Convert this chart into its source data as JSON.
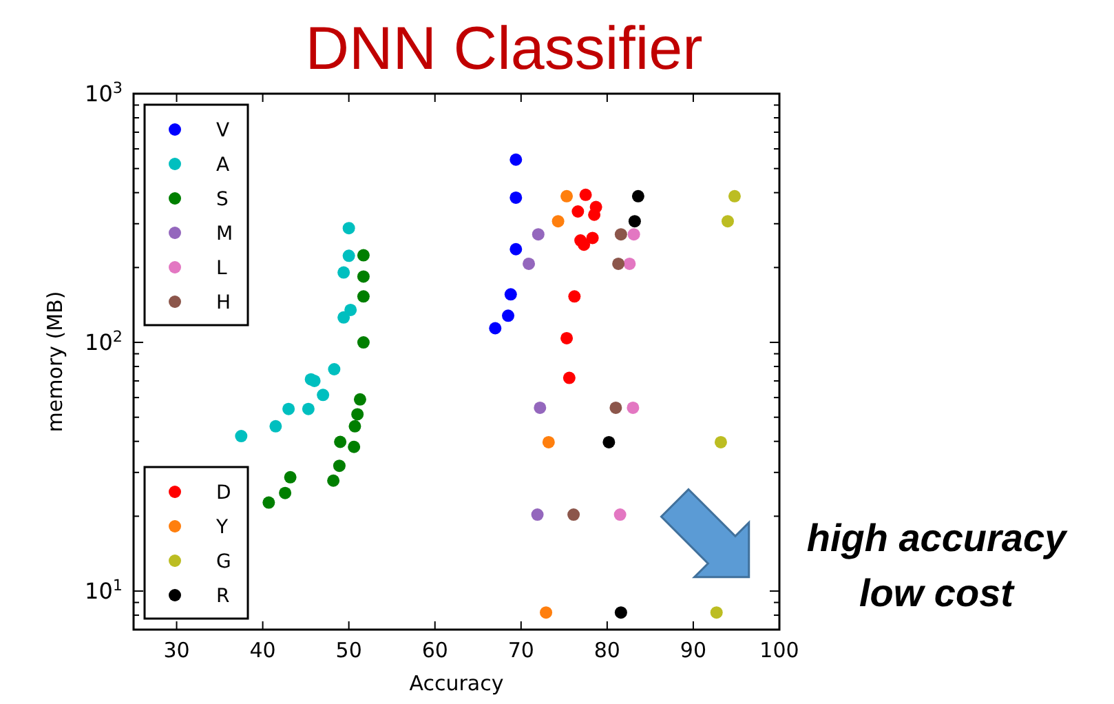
{
  "chart_data": {
    "type": "scatter",
    "title": "DNN Classifier",
    "xlabel": "Accuracy",
    "ylabel": "memory (MB)",
    "log": "y",
    "xlim": [
      25,
      100
    ],
    "xticks": [
      30,
      40,
      50,
      60,
      70,
      80,
      90,
      100
    ],
    "ylim": [
      7,
      1000
    ],
    "yticks": [
      {
        "value": 8,
        "label": null
      },
      {
        "value": 9,
        "label": null
      },
      {
        "value": 10,
        "label": "10$^{1}$"
      },
      {
        "value": 20,
        "label": null
      },
      {
        "value": 30,
        "label": null
      },
      {
        "value": 40,
        "label": null
      },
      {
        "value": 50,
        "label": null
      },
      {
        "value": 60,
        "label": null
      },
      {
        "value": 70,
        "label": null
      },
      {
        "value": 80,
        "label": null
      },
      {
        "value": 90,
        "label": null
      },
      {
        "value": 100,
        "label": "10$^{2}$"
      },
      {
        "value": 200,
        "label": null
      },
      {
        "value": 300,
        "label": null
      },
      {
        "value": 400,
        "label": null
      },
      {
        "value": 500,
        "label": null
      },
      {
        "value": 600,
        "label": null
      },
      {
        "value": 700,
        "label": null
      },
      {
        "value": 800,
        "label": null
      },
      {
        "value": 900,
        "label": null
      },
      {
        "value": 1000,
        "label": "10$^{3}$"
      }
    ],
    "grid": false,
    "legend": "left",
    "marker": "circle",
    "annotations": [
      "high accuracy",
      "low cost"
    ],
    "series": [
      {
        "name": "V",
        "color": "#0000ff",
        "x": [
          69.4,
          69.4,
          69.4,
          68.8,
          68.5,
          67.0
        ],
        "values": [
          543,
          382,
          237,
          156,
          128,
          114
        ]
      },
      {
        "name": "A",
        "color": "#00bfbf",
        "x": [
          50.0,
          50.0,
          49.4,
          50.2,
          49.4,
          48.3,
          45.6,
          46.0,
          47.0,
          43.0,
          45.3,
          41.5,
          37.5
        ],
        "values": [
          288,
          223,
          191,
          135,
          126,
          78,
          71,
          70,
          61.5,
          54,
          54,
          46,
          42
        ]
      },
      {
        "name": "S",
        "color": "#007f00",
        "x": [
          51.7,
          51.7,
          51.7,
          51.7,
          51.3,
          51.0,
          50.7,
          50.6,
          49.0,
          48.9,
          48.2,
          43.2,
          42.6,
          40.7
        ],
        "values": [
          224,
          184,
          153,
          100,
          59,
          51.4,
          46,
          38,
          39.8,
          31.9,
          27.8,
          28.7,
          24.8,
          22.7
        ]
      },
      {
        "name": "M",
        "color": "#9467bd",
        "x": [
          72.0,
          70.9,
          72.2,
          71.9
        ],
        "values": [
          272,
          207,
          54.6,
          20.3
        ]
      },
      {
        "name": "L",
        "color": "#e377c2",
        "x": [
          83.1,
          82.6,
          83.0,
          81.5
        ],
        "values": [
          272,
          207,
          54.6,
          20.3
        ]
      },
      {
        "name": "H",
        "color": "#8c564b",
        "x": [
          81.6,
          81.3,
          81.0,
          76.1
        ],
        "values": [
          272,
          207,
          54.6,
          20.3
        ]
      },
      {
        "name": "D",
        "color": "#ff0000",
        "x": [
          77.5,
          78.7,
          76.6,
          78.5,
          78.3,
          76.9,
          77.3,
          76.2,
          75.3,
          75.6
        ],
        "values": [
          392,
          350,
          336,
          326,
          263,
          257,
          247,
          153,
          104,
          72
        ]
      },
      {
        "name": "Y",
        "color": "#ff7f0e",
        "x": [
          75.3,
          74.3,
          73.2,
          72.9
        ],
        "values": [
          387,
          307,
          39.7,
          8.2
        ]
      },
      {
        "name": "G",
        "color": "#bcbd22",
        "x": [
          94.8,
          94.0,
          93.2,
          92.7
        ],
        "values": [
          387,
          307,
          39.7,
          8.2
        ]
      },
      {
        "name": "R",
        "color": "#000000",
        "x": [
          83.6,
          83.2,
          80.2,
          81.6
        ],
        "values": [
          387,
          307,
          39.7,
          8.2
        ]
      }
    ]
  }
}
